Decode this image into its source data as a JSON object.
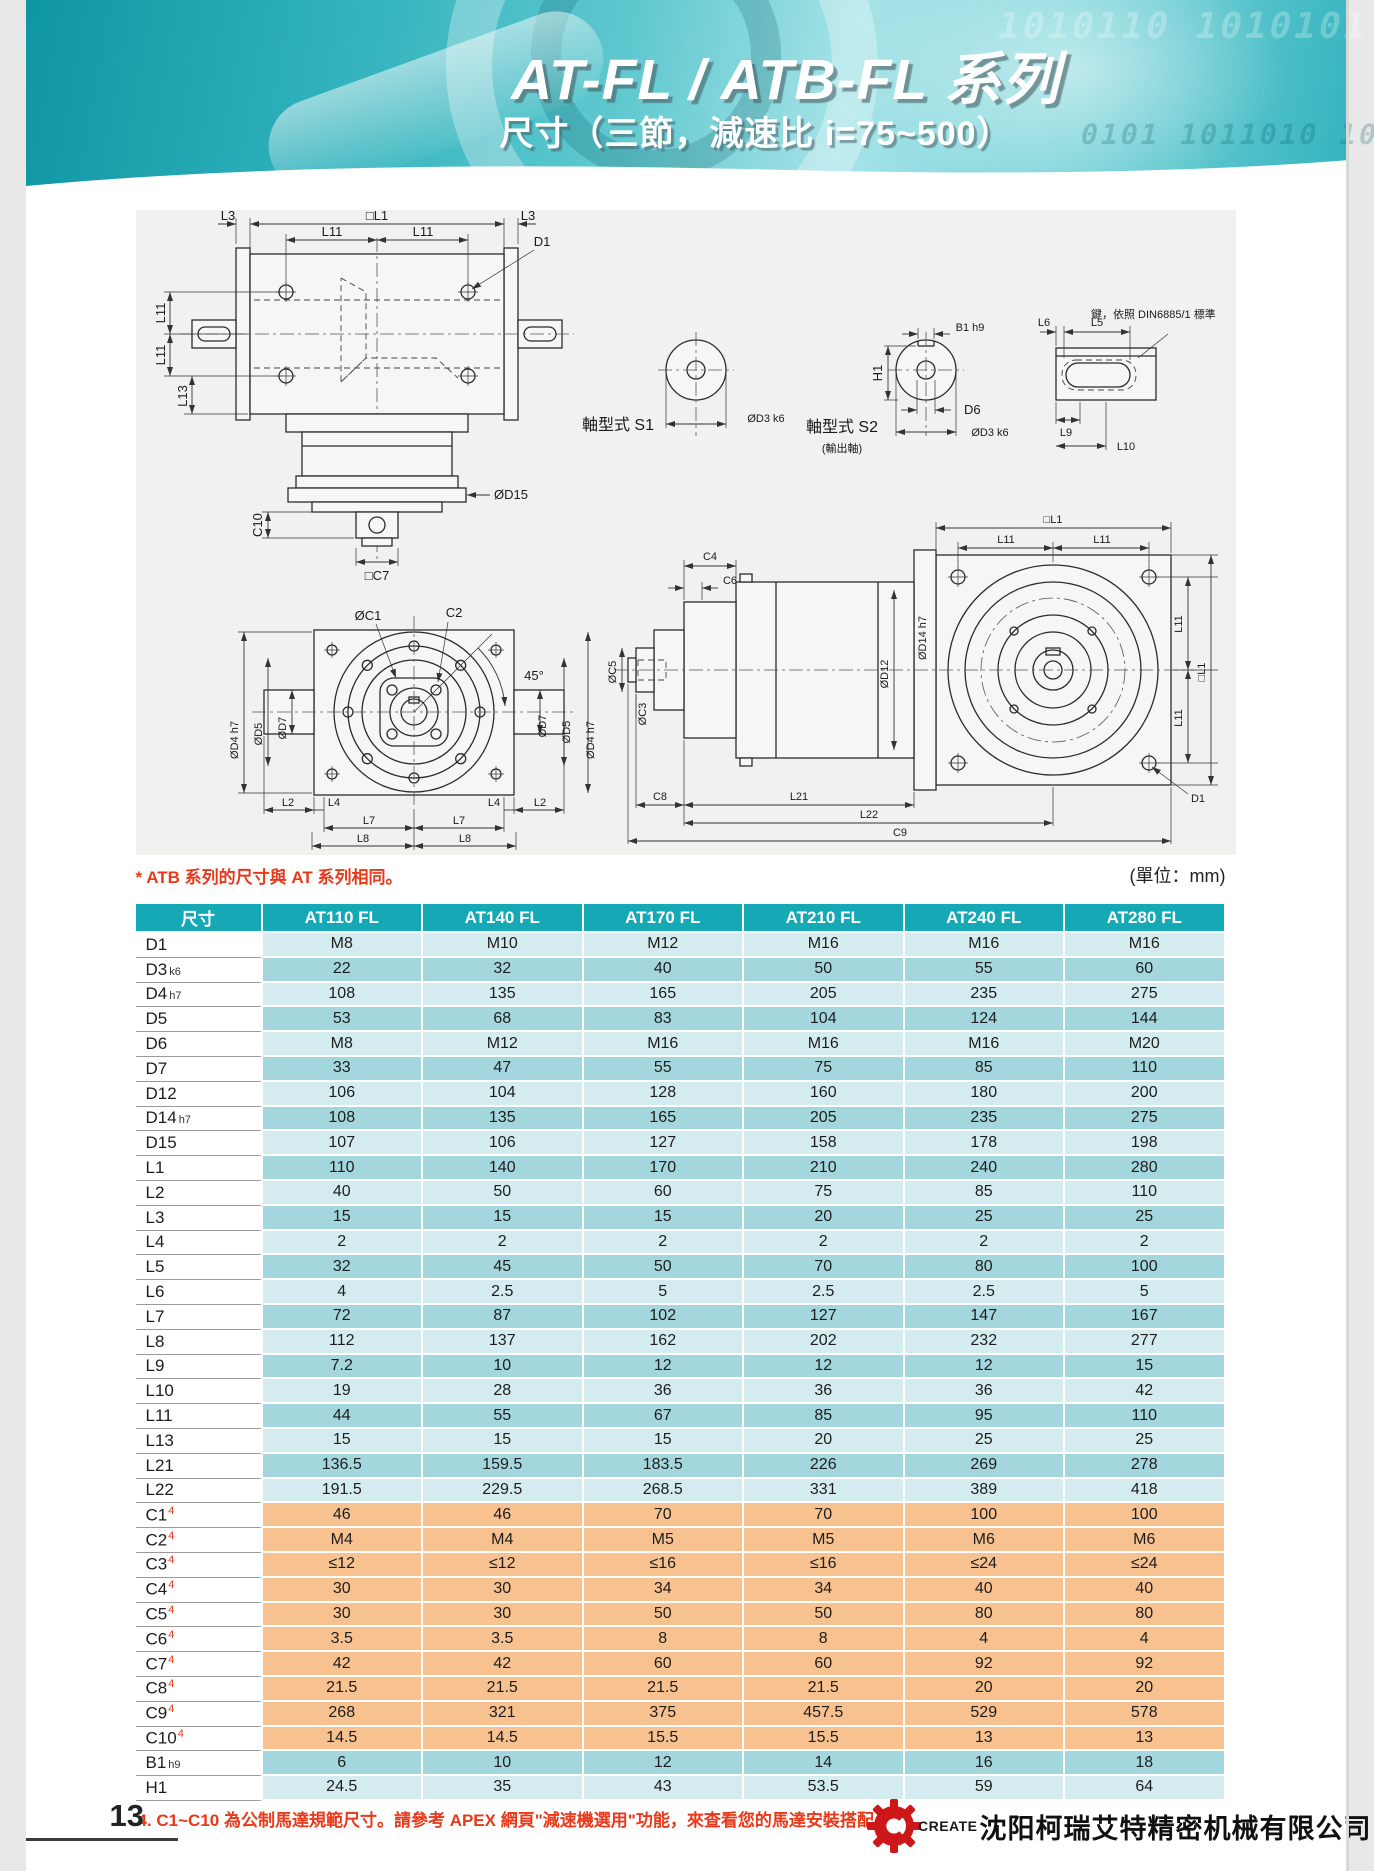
{
  "header": {
    "title": "AT-FL / ATB-FL 系列",
    "subtitle": "尺寸（三節，減速比 i=75~500）",
    "binary_pattern": "1010110 1010101",
    "binary_pattern2": "0101 1011010 10"
  },
  "notes": {
    "atb": "* ATB 系列的尺寸與 AT 系列相同。",
    "unit": "(單位：mm)",
    "footnote": "4. C1~C10 為公制馬達規範尺寸。請參考 APEX 網頁\"減速機選用\"功能，來查看您的馬達安裝搭配。"
  },
  "drawings": {
    "front": [
      "L3",
      "□L1",
      "L3",
      "L11",
      "L11",
      "D1",
      "L11",
      "L11",
      "L13",
      "ØD15",
      "C10",
      "□C7"
    ],
    "s1": [
      "軸型式 S1",
      "ØD3 k6"
    ],
    "s2": [
      "軸型式 S2",
      "(輸出軸)",
      "ØD3 k6",
      "B1 h9",
      "H1",
      "D6"
    ],
    "key": [
      "L6",
      "L5",
      "L9",
      "L10",
      "鍵，依照 DIN6885/1 標準"
    ],
    "flange": [
      "ØC1",
      "C2",
      "45°",
      "ØD4 h7",
      "ØD5",
      "ØD7",
      "ØD7",
      "ØD5",
      "ØD4 h7",
      "L2",
      "L4",
      "L4",
      "L2",
      "L7",
      "L7",
      "L8",
      "L8"
    ],
    "side": [
      "C4",
      "C6",
      "ØC5",
      "ØC3",
      "ØD12",
      "ØD14 h7",
      "□L1",
      "L11",
      "L11",
      "L11",
      "L11",
      "□L1",
      "D1",
      "C8",
      "L21",
      "L22",
      "C9"
    ]
  },
  "table": {
    "columns": [
      "尺寸",
      "AT110 FL",
      "AT140 FL",
      "AT170 FL",
      "AT210 FL",
      "AT240 FL",
      "AT280 FL"
    ],
    "rows": [
      {
        "label": "D1",
        "values": [
          "M8",
          "M10",
          "M12",
          "M16",
          "M16",
          "M16"
        ]
      },
      {
        "label": "D3",
        "sub": "k6",
        "values": [
          "22",
          "32",
          "40",
          "50",
          "55",
          "60"
        ]
      },
      {
        "label": "D4",
        "sub": "h7",
        "values": [
          "108",
          "135",
          "165",
          "205",
          "235",
          "275"
        ]
      },
      {
        "label": "D5",
        "values": [
          "53",
          "68",
          "83",
          "104",
          "124",
          "144"
        ]
      },
      {
        "label": "D6",
        "values": [
          "M8",
          "M12",
          "M16",
          "M16",
          "M16",
          "M20"
        ]
      },
      {
        "label": "D7",
        "values": [
          "33",
          "47",
          "55",
          "75",
          "85",
          "110"
        ]
      },
      {
        "label": "D12",
        "values": [
          "106",
          "104",
          "128",
          "160",
          "180",
          "200"
        ]
      },
      {
        "label": "D14",
        "sub": "h7",
        "values": [
          "108",
          "135",
          "165",
          "205",
          "235",
          "275"
        ]
      },
      {
        "label": "D15",
        "values": [
          "107",
          "106",
          "127",
          "158",
          "178",
          "198"
        ]
      },
      {
        "label": "L1",
        "values": [
          "110",
          "140",
          "170",
          "210",
          "240",
          "280"
        ]
      },
      {
        "label": "L2",
        "values": [
          "40",
          "50",
          "60",
          "75",
          "85",
          "110"
        ]
      },
      {
        "label": "L3",
        "values": [
          "15",
          "15",
          "15",
          "20",
          "25",
          "25"
        ]
      },
      {
        "label": "L4",
        "values": [
          "2",
          "2",
          "2",
          "2",
          "2",
          "2"
        ]
      },
      {
        "label": "L5",
        "values": [
          "32",
          "45",
          "50",
          "70",
          "80",
          "100"
        ]
      },
      {
        "label": "L6",
        "values": [
          "4",
          "2.5",
          "5",
          "2.5",
          "2.5",
          "5"
        ]
      },
      {
        "label": "L7",
        "values": [
          "72",
          "87",
          "102",
          "127",
          "147",
          "167"
        ]
      },
      {
        "label": "L8",
        "values": [
          "112",
          "137",
          "162",
          "202",
          "232",
          "277"
        ]
      },
      {
        "label": "L9",
        "values": [
          "7.2",
          "10",
          "12",
          "12",
          "12",
          "15"
        ]
      },
      {
        "label": "L10",
        "values": [
          "19",
          "28",
          "36",
          "36",
          "36",
          "42"
        ]
      },
      {
        "label": "L11",
        "values": [
          "44",
          "55",
          "67",
          "85",
          "95",
          "110"
        ]
      },
      {
        "label": "L13",
        "values": [
          "15",
          "15",
          "15",
          "20",
          "25",
          "25"
        ]
      },
      {
        "label": "L21",
        "values": [
          "136.5",
          "159.5",
          "183.5",
          "226",
          "269",
          "278"
        ]
      },
      {
        "label": "L22",
        "values": [
          "191.5",
          "229.5",
          "268.5",
          "331",
          "389",
          "418"
        ]
      },
      {
        "label": "C1",
        "sup": "4",
        "values": [
          "46",
          "46",
          "70",
          "70",
          "100",
          "100"
        ]
      },
      {
        "label": "C2",
        "sup": "4",
        "values": [
          "M4",
          "M4",
          "M5",
          "M5",
          "M6",
          "M6"
        ]
      },
      {
        "label": "C3",
        "sup": "4",
        "values": [
          "≤12",
          "≤12",
          "≤16",
          "≤16",
          "≤24",
          "≤24"
        ]
      },
      {
        "label": "C4",
        "sup": "4",
        "values": [
          "30",
          "30",
          "34",
          "34",
          "40",
          "40"
        ]
      },
      {
        "label": "C5",
        "sup": "4",
        "values": [
          "30",
          "30",
          "50",
          "50",
          "80",
          "80"
        ]
      },
      {
        "label": "C6",
        "sup": "4",
        "values": [
          "3.5",
          "3.5",
          "8",
          "8",
          "4",
          "4"
        ]
      },
      {
        "label": "C7",
        "sup": "4",
        "values": [
          "42",
          "42",
          "60",
          "60",
          "92",
          "92"
        ]
      },
      {
        "label": "C8",
        "sup": "4",
        "values": [
          "21.5",
          "21.5",
          "21.5",
          "21.5",
          "20",
          "20"
        ]
      },
      {
        "label": "C9",
        "sup": "4",
        "values": [
          "268",
          "321",
          "375",
          "457.5",
          "529",
          "578"
        ]
      },
      {
        "label": "C10",
        "sup": "4",
        "values": [
          "14.5",
          "14.5",
          "15.5",
          "15.5",
          "13",
          "13"
        ]
      },
      {
        "label": "B1",
        "sub": "h9",
        "values": [
          "6",
          "10",
          "12",
          "14",
          "16",
          "18"
        ]
      },
      {
        "label": "H1",
        "values": [
          "24.5",
          "35",
          "43",
          "53.5",
          "59",
          "64"
        ]
      }
    ]
  },
  "footer": {
    "page": "13",
    "logo_text": "CREATE",
    "company": "沈阳柯瑞艾特精密机械有限公司"
  },
  "colors": {
    "teal_header": "#14a9b5",
    "row_light": "#d4ecef",
    "row_dark": "#a4d7dd",
    "row_motor": "#f7c28f",
    "note_red": "#e8391b",
    "logo_red": "#cd1719"
  }
}
